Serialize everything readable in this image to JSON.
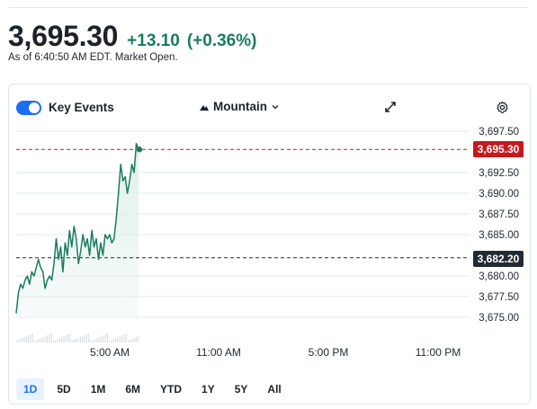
{
  "quote": {
    "price": "3,695.30",
    "change": "+13.10",
    "change_pct": "(+0.36%)",
    "as_of": "As of 6:40:50 AM EDT. Market Open."
  },
  "toolbar": {
    "key_events_label": "Key Events",
    "key_events_on": true,
    "chart_style_label": "Mountain",
    "expand_icon": "expand-icon",
    "settings_icon": "gear-icon"
  },
  "chart_data": {
    "type": "area",
    "ylim": [
      3673.5,
      3698.5
    ],
    "yticks": [
      "3,697.50",
      "3,695.30",
      "3,692.50",
      "3,690.00",
      "3,687.50",
      "3,685.00",
      "3,682.20",
      "3,680.00",
      "3,677.50",
      "3,675.00"
    ],
    "xticks": [
      "5:00 AM",
      "11:00 AM",
      "5:00 PM",
      "11:00 PM"
    ],
    "current_price_label": "3,695.30",
    "previous_close_label": "3,682.20",
    "current_price": 3695.3,
    "previous_close": 3682.2,
    "series": [
      {
        "values": [
          3675.5,
          3678.0,
          3679.0,
          3678.5,
          3679.5,
          3680.0,
          3679.0,
          3680.5,
          3680.0,
          3681.0,
          3682.0,
          3681.0,
          3680.5,
          3678.5,
          3679.5,
          3680.0,
          3679.5,
          3681.5,
          3684.5,
          3682.0,
          3683.5,
          3680.5,
          3684.0,
          3682.5,
          3685.5,
          3683.5,
          3686.0,
          3684.5,
          3681.5,
          3683.0,
          3685.0,
          3683.5,
          3684.5,
          3682.5,
          3685.5,
          3683.5,
          3684.5,
          3682.0,
          3684.0,
          3682.5,
          3685.0,
          3684.5,
          3685.0,
          3684.0,
          3684.5,
          3687.0,
          3690.0,
          3693.5,
          3691.5,
          3692.0,
          3690.0,
          3691.5,
          3693.5,
          3692.5,
          3696.0,
          3695.3
        ]
      }
    ],
    "colors": {
      "line": "#1a7c5f",
      "fill": "#dff0ea",
      "prev_close": "#232a31",
      "current": "#c8171d"
    }
  },
  "ranges": [
    "1D",
    "5D",
    "1M",
    "6M",
    "YTD",
    "1Y",
    "5Y",
    "All"
  ],
  "active_range": "1D"
}
